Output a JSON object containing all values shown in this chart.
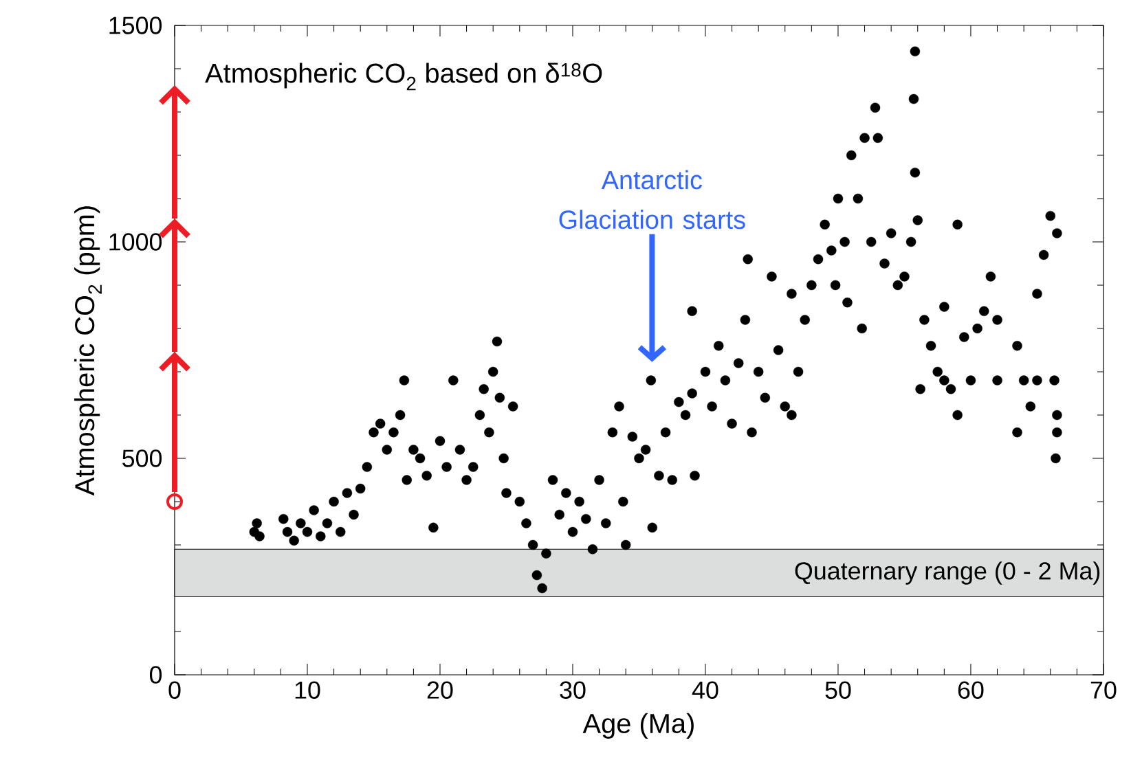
{
  "chart_data": {
    "type": "scatter",
    "title": "Atmospheric CO$_{2}$ based on δ$^{18}$O",
    "xlabel": "Age (Ma)",
    "ylabel": "Atmospheric CO$_{2}$ (ppm)",
    "xlim": [
      0,
      70
    ],
    "ylim": [
      0,
      1500
    ],
    "xticks": [
      0,
      10,
      20,
      30,
      40,
      50,
      60,
      70
    ],
    "yticks": [
      0,
      500,
      1000,
      1500
    ],
    "grid": false,
    "marker": "circle",
    "series": [
      {
        "color": "#000000",
        "x": [
          6,
          6.2,
          6.4,
          8.2,
          8.5,
          9,
          9.5,
          10,
          10.5,
          11,
          11.5,
          12,
          12.5,
          13,
          13.5,
          14,
          14.5,
          15,
          15.5,
          16,
          16.5,
          17,
          17.3,
          17.5,
          18,
          18.5,
          19,
          19.5,
          20,
          20.5,
          21,
          21.5,
          22,
          22.5,
          23,
          23.3,
          23.7,
          24,
          24.3,
          24.5,
          24.8,
          25,
          25.5,
          26,
          26.5,
          27,
          27.3,
          27.7,
          28,
          28.5,
          29,
          29.5,
          30,
          30.5,
          31,
          31.5,
          32,
          32.5,
          33,
          33.5,
          33.8,
          34,
          34.5,
          35,
          35.5,
          35.9,
          36,
          36.5,
          37,
          37.5,
          38,
          38.5,
          39,
          39,
          39.2,
          40,
          40.5,
          41,
          41.5,
          42,
          42.5,
          43,
          43.2,
          43.5,
          44,
          44.5,
          45,
          45.5,
          46,
          46.5,
          46.5,
          47,
          47.5,
          48,
          48.5,
          49,
          49.5,
          49.8,
          50,
          50.5,
          50.7,
          51,
          51.5,
          51.8,
          52,
          52.5,
          52.8,
          53,
          53.5,
          54,
          54.5,
          55,
          55.5,
          55.8,
          55.7,
          55.8,
          56,
          56.2,
          56.5,
          57,
          57.5,
          58,
          58,
          58.5,
          59,
          59,
          59.5,
          60,
          60.5,
          61,
          61.5,
          62,
          62,
          63.5,
          63.5,
          64,
          64.5,
          65,
          65,
          65.5,
          66,
          66.3,
          66.4,
          66.5,
          66.5,
          66.5
        ],
        "values": [
          330,
          350,
          320,
          360,
          330,
          310,
          350,
          330,
          380,
          320,
          350,
          400,
          330,
          420,
          370,
          430,
          480,
          560,
          580,
          520,
          560,
          600,
          680,
          450,
          520,
          500,
          460,
          340,
          540,
          480,
          680,
          520,
          450,
          480,
          600,
          660,
          560,
          700,
          770,
          640,
          500,
          420,
          620,
          400,
          350,
          300,
          230,
          200,
          280,
          450,
          370,
          420,
          330,
          400,
          360,
          290,
          450,
          350,
          560,
          620,
          400,
          300,
          550,
          500,
          520,
          680,
          340,
          460,
          560,
          450,
          630,
          600,
          650,
          840,
          460,
          700,
          620,
          760,
          680,
          580,
          720,
          820,
          960,
          560,
          700,
          640,
          920,
          750,
          620,
          880,
          600,
          700,
          820,
          900,
          960,
          1040,
          980,
          900,
          1100,
          1000,
          860,
          1200,
          1100,
          800,
          1240,
          1000,
          1310,
          1240,
          950,
          1020,
          900,
          920,
          1000,
          1440,
          1330,
          1160,
          1050,
          660,
          820,
          760,
          700,
          850,
          680,
          660,
          600,
          1040,
          780,
          680,
          800,
          840,
          920,
          680,
          820,
          560,
          760,
          680,
          620,
          880,
          680,
          970,
          1060,
          680,
          500,
          1020,
          560,
          600
        ]
      },
      {
        "color": "#ee1c24",
        "x": [
          0
        ],
        "values": [
          400
        ]
      }
    ],
    "bands": [
      {
        "axis": "y",
        "from": 180,
        "to": 290,
        "label": "Quaternary range (0 - 2 Ma)",
        "color": "#dcdddd"
      }
    ],
    "annotations": [
      "Antarctic Glaciation starts"
    ]
  }
}
